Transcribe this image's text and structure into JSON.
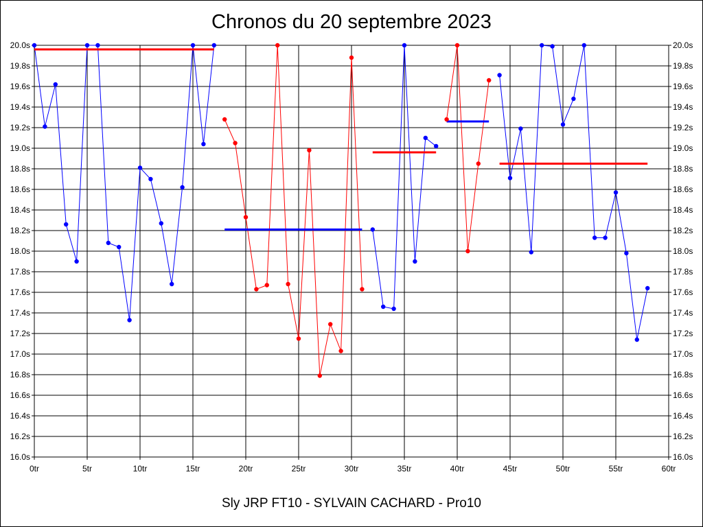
{
  "chart_data": {
    "type": "line",
    "title": "Chronos du 20 septembre 2023",
    "subtitle": "Sly JRP FT10 - SYLVAIN CACHARD - Pro10",
    "xlabel": "",
    "ylabel": "",
    "xlim": [
      0,
      60
    ],
    "ylim": [
      16.0,
      20.0
    ],
    "x_ticks": [
      0,
      5,
      10,
      15,
      20,
      25,
      30,
      35,
      40,
      45,
      50,
      55,
      60
    ],
    "x_tick_labels": [
      "0tr",
      "5tr",
      "10tr",
      "15tr",
      "20tr",
      "25tr",
      "30tr",
      "35tr",
      "40tr",
      "45tr",
      "50tr",
      "55tr",
      "60tr"
    ],
    "y_ticks": [
      16.0,
      16.2,
      16.4,
      16.6,
      16.8,
      17.0,
      17.2,
      17.4,
      17.6,
      17.8,
      18.0,
      18.2,
      18.4,
      18.6,
      18.8,
      19.0,
      19.2,
      19.4,
      19.6,
      19.8,
      20.0
    ],
    "y_tick_labels": [
      "16.0s",
      "16.2s",
      "16.4s",
      "16.6s",
      "16.8s",
      "17.0s",
      "17.2s",
      "17.4s",
      "17.6s",
      "17.8s",
      "18.0s",
      "18.2s",
      "18.4s",
      "18.6s",
      "18.8s",
      "19.0s",
      "19.2s",
      "19.4s",
      "19.6s",
      "19.8s",
      "20.0s"
    ],
    "grid": true,
    "colors": {
      "blue": "#0000ff",
      "red": "#ff0000"
    },
    "series": [
      {
        "color": "blue",
        "x": [
          0,
          1,
          2,
          3,
          4,
          5,
          6,
          7,
          8,
          9,
          10,
          11,
          12,
          13,
          14,
          15,
          16,
          17
        ],
        "y": [
          20.0,
          19.21,
          19.62,
          18.26,
          17.9,
          20.0,
          20.0,
          18.08,
          18.04,
          17.33,
          18.81,
          18.7,
          18.27,
          17.68,
          18.62,
          20.0,
          19.04,
          20.0
        ]
      },
      {
        "color": "red",
        "x": [
          18,
          19,
          20,
          21,
          22,
          23,
          24,
          25,
          26,
          27,
          28,
          29,
          30,
          31
        ],
        "y": [
          19.28,
          19.05,
          18.33,
          17.63,
          17.67,
          20.0,
          17.68,
          17.15,
          18.98,
          16.79,
          17.29,
          17.03,
          19.88,
          17.63
        ]
      },
      {
        "color": "blue",
        "x": [
          32,
          33,
          34,
          35,
          36,
          37,
          38
        ],
        "y": [
          18.21,
          17.46,
          17.44,
          20.0,
          17.9,
          19.1,
          19.02
        ]
      },
      {
        "color": "red",
        "x": [
          39,
          40,
          41,
          42,
          43
        ],
        "y": [
          19.28,
          20.0,
          18.0,
          18.85,
          19.66
        ]
      },
      {
        "color": "blue",
        "x": [
          44,
          45,
          46,
          47,
          48,
          49,
          50,
          51,
          52,
          53,
          54,
          55,
          56,
          57,
          58
        ],
        "y": [
          19.71,
          18.71,
          19.19,
          17.99,
          20.0,
          19.99,
          19.23,
          19.48,
          20.0,
          18.13,
          18.13,
          18.57,
          17.98,
          17.14,
          17.64
        ]
      }
    ],
    "averages": [
      {
        "color": "red",
        "x_start": 0,
        "x_end": 17,
        "y": 19.96
      },
      {
        "color": "blue",
        "x_start": 18,
        "x_end": 31,
        "y": 18.21
      },
      {
        "color": "red",
        "x_start": 32,
        "x_end": 38,
        "y": 18.96
      },
      {
        "color": "blue",
        "x_start": 39,
        "x_end": 43,
        "y": 19.26
      },
      {
        "color": "red",
        "x_start": 44,
        "x_end": 58,
        "y": 18.85
      }
    ]
  }
}
